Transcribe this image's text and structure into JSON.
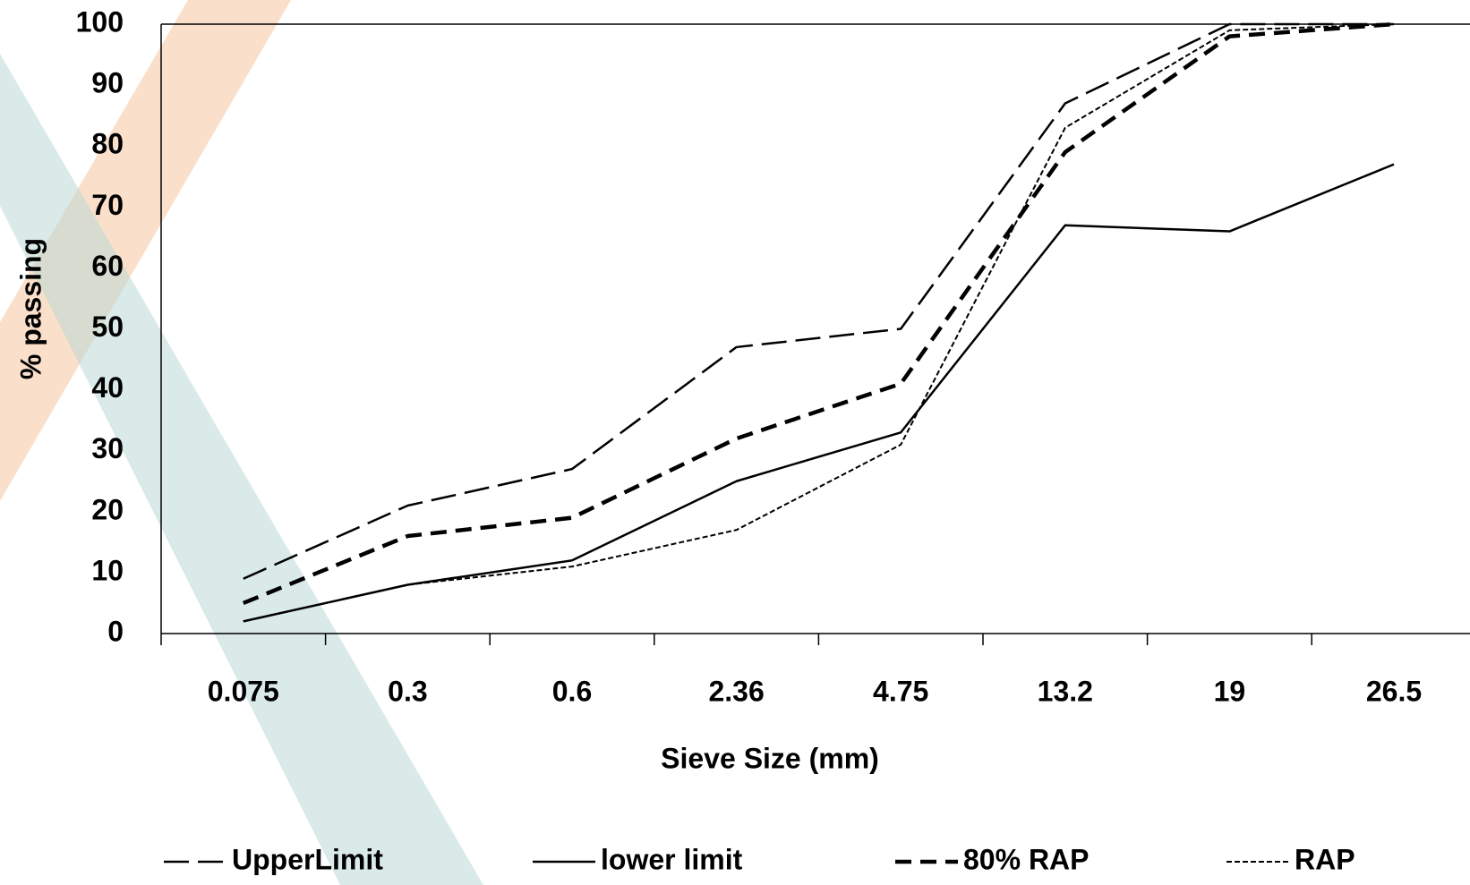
{
  "chart_data": {
    "type": "line",
    "x_label": "Sieve Size (mm)",
    "y_label": "% passing",
    "categories": [
      "0.075",
      "0.3",
      "0.6",
      "2.36",
      "4.75",
      "13.2",
      "19",
      "26.5"
    ],
    "series": [
      {
        "name": "UpperLimit",
        "color": "#000000",
        "dash": [
          28,
          10
        ],
        "width": 2.5,
        "values": [
          9,
          21,
          27,
          47,
          50,
          87,
          100,
          100
        ]
      },
      {
        "name": "lower limit",
        "color": "#000000",
        "dash": [],
        "width": 2.5,
        "values": [
          2,
          8,
          12,
          25,
          33,
          67,
          66,
          77
        ]
      },
      {
        "name": "80% RAP",
        "color": "#000000",
        "dash": [
          18,
          10
        ],
        "width": 4.5,
        "values": [
          5,
          16,
          19,
          32,
          41,
          79,
          98,
          100
        ]
      },
      {
        "name": "RAP",
        "color": "#000000",
        "dash": [
          6,
          3
        ],
        "width": 2,
        "values": [
          2,
          8,
          11,
          17,
          31,
          83,
          99,
          100
        ]
      }
    ],
    "ylim": [
      0,
      100
    ],
    "yticks": [
      0,
      10,
      20,
      30,
      40,
      50,
      60,
      70,
      80,
      90,
      100
    ],
    "grid": false,
    "legend": "bottom"
  }
}
